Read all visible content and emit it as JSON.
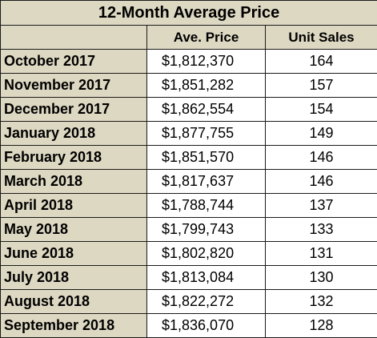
{
  "title": "12-Month Average Price",
  "columns": {
    "month": "",
    "price": "Ave. Price",
    "sales": "Unit Sales"
  },
  "rows": [
    {
      "month": "October 2017",
      "price": "$1,812,370",
      "sales": "164"
    },
    {
      "month": "November 2017",
      "price": "$1,851,282",
      "sales": "157"
    },
    {
      "month": "December 2017",
      "price": "$1,862,554",
      "sales": "154"
    },
    {
      "month": "January 2018",
      "price": "$1,877,755",
      "sales": "149"
    },
    {
      "month": "February 2018",
      "price": "$1,851,570",
      "sales": "146"
    },
    {
      "month": "March 2018",
      "price": "$1,817,637",
      "sales": "146"
    },
    {
      "month": "April 2018",
      "price": "$1,788,744",
      "sales": "137"
    },
    {
      "month": "May 2018",
      "price": "$1,799,743",
      "sales": "133"
    },
    {
      "month": "June 2018",
      "price": "$1,802,820",
      "sales": "131"
    },
    {
      "month": "July 2018",
      "price": "$1,813,084",
      "sales": "130"
    },
    {
      "month": "August 2018",
      "price": "$1,822,272",
      "sales": "132"
    },
    {
      "month": "September 2018",
      "price": "$1,836,070",
      "sales": "128"
    }
  ],
  "colors": {
    "header_background": "#ddd8c2",
    "cell_background": "#ffffff",
    "border": "#1a1a1a"
  }
}
